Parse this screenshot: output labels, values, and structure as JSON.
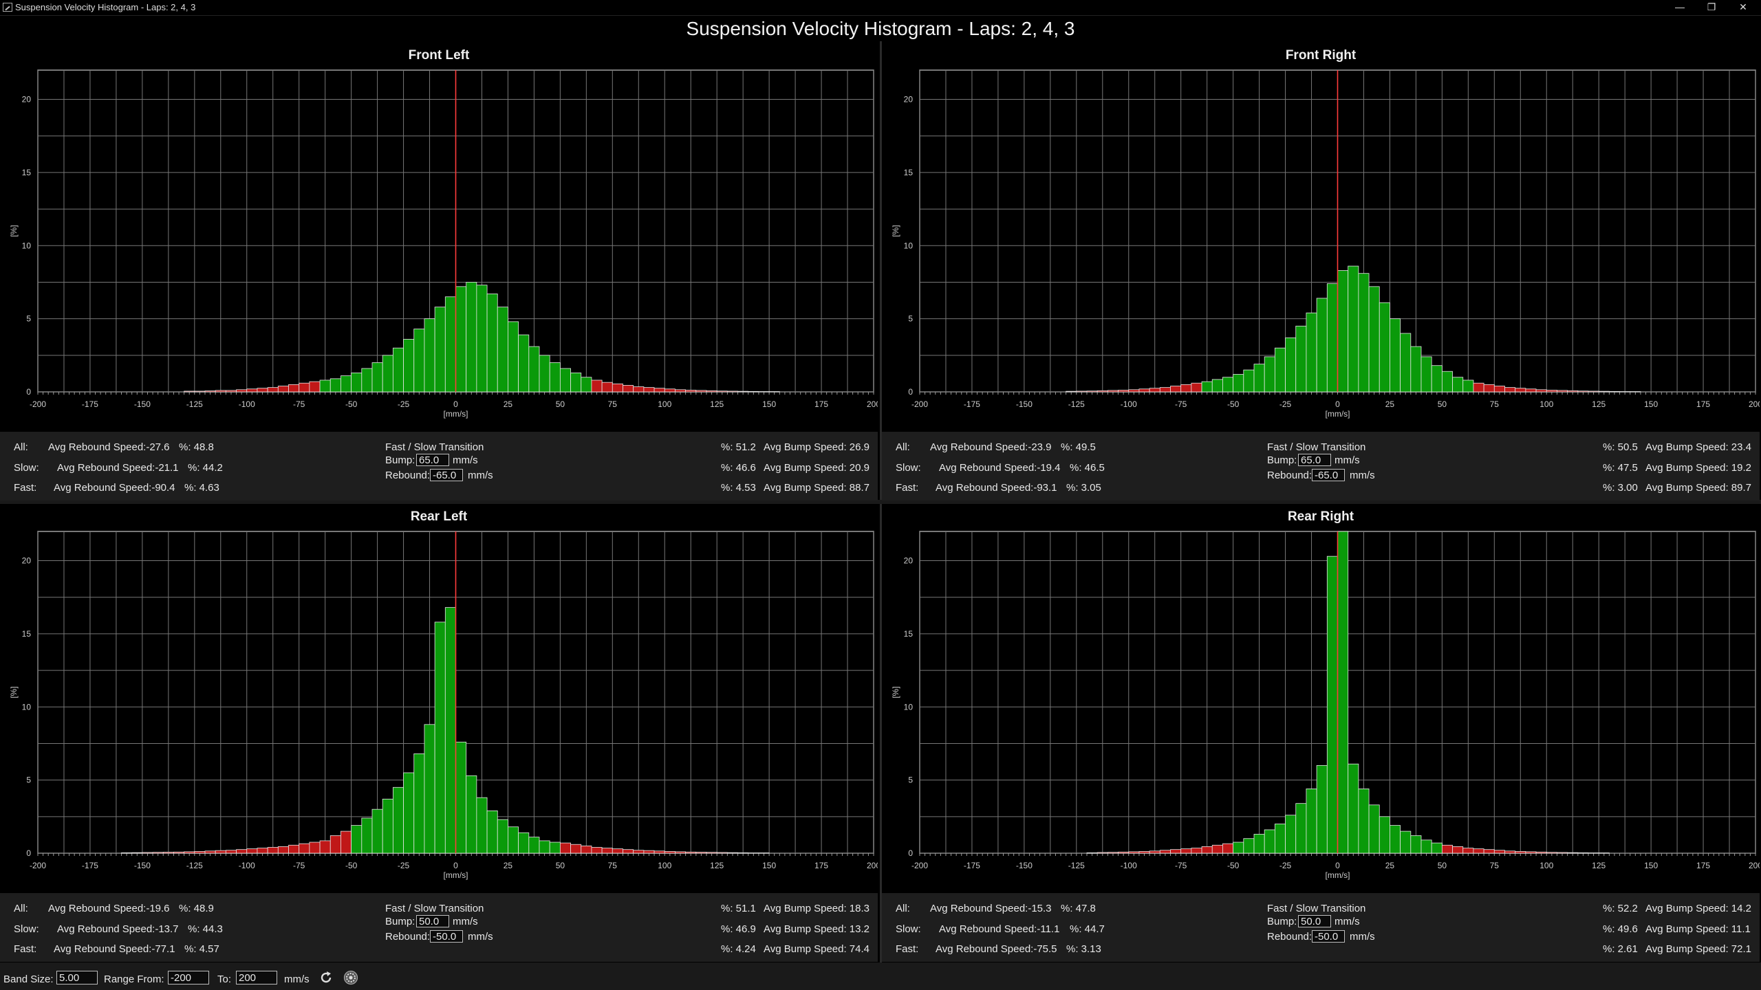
{
  "window": {
    "title": "Suspension Velocity Histogram - Laps: 2, 4, 3",
    "controls": {
      "minimize": "—",
      "restore": "❐",
      "close": "✕"
    }
  },
  "main_title": "Suspension Velocity Histogram - Laps: 2, 4, 3",
  "colors": {
    "bar_slow": "#0a9a0a",
    "bar_fast": "#c01818",
    "center_line": "#ff3b3b",
    "grid": "#8a8a8a"
  },
  "panels": [
    {
      "title": "Front Left",
      "transition": {
        "bump": "65.0",
        "rebound": "-65.0"
      },
      "stats": {
        "all": {
          "rebound": "Avg Rebound Speed:-27.6",
          "rebound_pct": "%: 48.8",
          "bump_pct": "%: 51.2",
          "bump": "Avg Bump Speed: 26.9"
        },
        "slow": {
          "rebound": "Avg Rebound Speed:-21.1",
          "rebound_pct": "%: 44.2",
          "bump_pct": "%: 46.6",
          "bump": "Avg Bump Speed: 20.9"
        },
        "fast": {
          "rebound": "Avg Rebound Speed:-90.4",
          "rebound_pct": "%: 4.63",
          "bump_pct": "%: 4.53",
          "bump": "Avg Bump Speed: 88.7"
        }
      }
    },
    {
      "title": "Front Right",
      "transition": {
        "bump": "65.0",
        "rebound": "-65.0"
      },
      "stats": {
        "all": {
          "rebound": "Avg Rebound Speed:-23.9",
          "rebound_pct": "%: 49.5",
          "bump_pct": "%: 50.5",
          "bump": "Avg Bump Speed: 23.4"
        },
        "slow": {
          "rebound": "Avg Rebound Speed:-19.4",
          "rebound_pct": "%: 46.5",
          "bump_pct": "%: 47.5",
          "bump": "Avg Bump Speed: 19.2"
        },
        "fast": {
          "rebound": "Avg Rebound Speed:-93.1",
          "rebound_pct": "%: 3.05",
          "bump_pct": "%: 3.00",
          "bump": "Avg Bump Speed: 89.7"
        }
      }
    },
    {
      "title": "Rear Left",
      "transition": {
        "bump": "50.0",
        "rebound": "-50.0"
      },
      "stats": {
        "all": {
          "rebound": "Avg Rebound Speed:-19.6",
          "rebound_pct": "%: 48.9",
          "bump_pct": "%: 51.1",
          "bump": "Avg Bump Speed: 18.3"
        },
        "slow": {
          "rebound": "Avg Rebound Speed:-13.7",
          "rebound_pct": "%: 44.3",
          "bump_pct": "%: 46.9",
          "bump": "Avg Bump Speed: 13.2"
        },
        "fast": {
          "rebound": "Avg Rebound Speed:-77.1",
          "rebound_pct": "%: 4.57",
          "bump_pct": "%: 4.24",
          "bump": "Avg Bump Speed: 74.4"
        }
      }
    },
    {
      "title": "Rear Right",
      "transition": {
        "bump": "50.0",
        "rebound": "-50.0"
      },
      "stats": {
        "all": {
          "rebound": "Avg Rebound Speed:-15.3",
          "rebound_pct": "%: 47.8",
          "bump_pct": "%: 52.2",
          "bump": "Avg Bump Speed: 14.2"
        },
        "slow": {
          "rebound": "Avg Rebound Speed:-11.1",
          "rebound_pct": "%: 44.7",
          "bump_pct": "%: 49.6",
          "bump": "Avg Bump Speed: 11.1"
        },
        "fast": {
          "rebound": "Avg Rebound Speed:-75.5",
          "rebound_pct": "%: 3.13",
          "bump_pct": "%: 2.61",
          "bump": "Avg Bump Speed: 72.1"
        }
      }
    }
  ],
  "labels": {
    "all": "All:",
    "slow": "Slow:",
    "fast": "Fast:",
    "transition": "Fast / Slow Transition",
    "bump": "Bump:",
    "rebound": "Rebound:",
    "unit": "mm/s"
  },
  "bottom": {
    "band_size_label": "Band Size:",
    "band_size": "5.00",
    "range_from_label": "Range From:",
    "range_from": "-200",
    "to_label": "To:",
    "range_to": "200",
    "unit": "mm/s",
    "refresh_icon": "refresh-icon",
    "settings_icon": "settings-icon"
  },
  "chart_data": [
    {
      "type": "bar",
      "title": "Front Left",
      "xlabel": "[mm/s]",
      "ylabel": "[%]",
      "xlim": [
        -200,
        200
      ],
      "ylim": [
        0,
        22
      ],
      "x_ticks": [
        "-200",
        "-175",
        "-150",
        "-125",
        "-100",
        "-75",
        "-50",
        "-25",
        "0",
        "25",
        "50",
        "75",
        "100",
        "125",
        "150",
        "175",
        "200"
      ],
      "y_ticks": [
        "0",
        "5",
        "10",
        "15",
        "20"
      ],
      "band_size": 5,
      "fast_threshold": 65,
      "values": [
        0,
        0,
        0,
        0,
        0,
        0,
        0,
        0,
        0,
        0,
        0,
        0,
        0,
        0,
        0.05,
        0.05,
        0.07,
        0.1,
        0.1,
        0.15,
        0.2,
        0.25,
        0.3,
        0.4,
        0.5,
        0.6,
        0.7,
        0.8,
        0.9,
        1.1,
        1.3,
        1.6,
        2,
        2.5,
        3,
        3.6,
        4.3,
        5,
        5.8,
        6.5,
        7.2,
        7.5,
        7.3,
        6.7,
        5.8,
        4.8,
        3.9,
        3.1,
        2.5,
        2,
        1.6,
        1.3,
        1,
        0.8,
        0.65,
        0.55,
        0.45,
        0.35,
        0.3,
        0.25,
        0.2,
        0.15,
        0.12,
        0.1,
        0.08,
        0.06,
        0.05,
        0.04,
        0.03,
        0.02,
        0.02,
        0,
        0,
        0,
        0,
        0,
        0,
        0,
        0,
        0
      ]
    },
    {
      "type": "bar",
      "title": "Front Right",
      "xlabel": "[mm/s]",
      "ylabel": "[%]",
      "xlim": [
        -200,
        200
      ],
      "ylim": [
        0,
        22
      ],
      "x_ticks": [
        "-200",
        "-175",
        "-150",
        "-125",
        "-100",
        "-75",
        "-50",
        "-25",
        "0",
        "25",
        "50",
        "75",
        "100",
        "125",
        "150",
        "175",
        "200"
      ],
      "y_ticks": [
        "0",
        "5",
        "10",
        "15",
        "20"
      ],
      "band_size": 5,
      "fast_threshold": 65,
      "values": [
        0,
        0,
        0,
        0,
        0,
        0,
        0,
        0,
        0,
        0,
        0,
        0,
        0,
        0,
        0.04,
        0.05,
        0.06,
        0.08,
        0.1,
        0.12,
        0.15,
        0.2,
        0.25,
        0.3,
        0.4,
        0.5,
        0.6,
        0.7,
        0.85,
        1,
        1.2,
        1.5,
        1.9,
        2.4,
        3,
        3.7,
        4.5,
        5.4,
        6.4,
        7.4,
        8.3,
        8.6,
        8.1,
        7.2,
        6.1,
        5,
        4,
        3.1,
        2.4,
        1.8,
        1.4,
        1,
        0.8,
        0.6,
        0.5,
        0.4,
        0.3,
        0.25,
        0.2,
        0.15,
        0.12,
        0.1,
        0.08,
        0.06,
        0.05,
        0.04,
        0.03,
        0.02,
        0.02,
        0,
        0,
        0,
        0,
        0,
        0,
        0,
        0,
        0,
        0,
        0
      ]
    },
    {
      "type": "bar",
      "title": "Rear Left",
      "xlabel": "[mm/s]",
      "ylabel": "[%]",
      "xlim": [
        -200,
        200
      ],
      "ylim": [
        0,
        22
      ],
      "x_ticks": [
        "-200",
        "-175",
        "-150",
        "-125",
        "-100",
        "-75",
        "-50",
        "-25",
        "0",
        "25",
        "50",
        "75",
        "100",
        "125",
        "150",
        "175",
        "200"
      ],
      "y_ticks": [
        "0",
        "5",
        "10",
        "15",
        "20"
      ],
      "band_size": 5,
      "fast_threshold": 50,
      "values": [
        0,
        0,
        0,
        0,
        0,
        0,
        0,
        0,
        0.03,
        0.04,
        0.05,
        0.06,
        0.07,
        0.08,
        0.1,
        0.12,
        0.15,
        0.18,
        0.2,
        0.25,
        0.3,
        0.35,
        0.4,
        0.45,
        0.55,
        0.65,
        0.75,
        0.85,
        1.2,
        1.5,
        1.9,
        2.4,
        3,
        3.7,
        4.5,
        5.5,
        6.8,
        8.8,
        15.8,
        16.8,
        7.6,
        5.3,
        3.8,
        2.9,
        2.3,
        1.8,
        1.4,
        1.1,
        0.85,
        0.75,
        0.7,
        0.6,
        0.5,
        0.4,
        0.35,
        0.3,
        0.25,
        0.2,
        0.18,
        0.15,
        0.12,
        0.1,
        0.08,
        0.07,
        0.06,
        0.05,
        0.04,
        0.03,
        0.02,
        0.02,
        0,
        0,
        0,
        0,
        0,
        0,
        0,
        0,
        0,
        0
      ]
    },
    {
      "type": "bar",
      "title": "Rear Right",
      "xlabel": "[mm/s]",
      "ylabel": "[%]",
      "xlim": [
        -200,
        200
      ],
      "ylim": [
        0,
        22
      ],
      "x_ticks": [
        "-200",
        "-175",
        "-150",
        "-125",
        "-100",
        "-75",
        "-50",
        "-25",
        "0",
        "25",
        "50",
        "75",
        "100",
        "125",
        "150",
        "175",
        "200"
      ],
      "y_ticks": [
        "0",
        "5",
        "10",
        "15",
        "20"
      ],
      "band_size": 5,
      "fast_threshold": 50,
      "values": [
        0,
        0,
        0,
        0,
        0,
        0,
        0,
        0,
        0,
        0,
        0,
        0,
        0,
        0,
        0,
        0,
        0.03,
        0.05,
        0.06,
        0.08,
        0.1,
        0.12,
        0.15,
        0.2,
        0.25,
        0.3,
        0.35,
        0.45,
        0.55,
        0.65,
        0.75,
        1,
        1.3,
        1.6,
        2,
        2.6,
        3.4,
        4.4,
        6,
        20.3,
        22,
        6.1,
        4.4,
        3.3,
        2.5,
        1.9,
        1.5,
        1.2,
        0.9,
        0.7,
        0.55,
        0.45,
        0.35,
        0.3,
        0.25,
        0.2,
        0.15,
        0.12,
        0.1,
        0.08,
        0.06,
        0.05,
        0.04,
        0.03,
        0.02,
        0.02,
        0,
        0,
        0,
        0,
        0,
        0,
        0,
        0,
        0,
        0,
        0,
        0,
        0,
        0
      ]
    }
  ]
}
